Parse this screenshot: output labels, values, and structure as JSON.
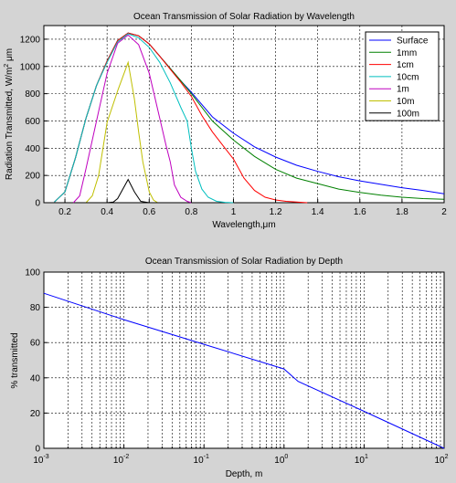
{
  "chart_data": [
    {
      "type": "line",
      "title": "Ocean Transmission of Solar Radiation by Wavelength",
      "xlabel": "Wavelength,μm",
      "ylabel": "Radiation Transmitted, W/m² μm",
      "ylabel_parts": {
        "pre": "Radiation Transmitted, W/m",
        "sup": "2",
        "post": " μm"
      },
      "xlim": [
        0.1,
        2.0
      ],
      "ylim": [
        0,
        1300
      ],
      "xticks": [
        0.2,
        0.4,
        0.6,
        0.8,
        1.0,
        1.2,
        1.4,
        1.6,
        1.8,
        2.0
      ],
      "xtick_labels": [
        "0.2",
        "0.4",
        "0.6",
        "0.8",
        "1",
        "1.2",
        "1.4",
        "1.6",
        "1.8",
        "2"
      ],
      "yticks": [
        0,
        200,
        400,
        600,
        800,
        1000,
        1200
      ],
      "ytick_labels": [
        "0",
        "200",
        "400",
        "600",
        "800",
        "1000",
        "1200"
      ],
      "grid": true,
      "legend_position": "top-right",
      "series": [
        {
          "name": "Surface",
          "color": "#0000ff",
          "x": [
            0.15,
            0.2,
            0.25,
            0.3,
            0.35,
            0.4,
            0.45,
            0.5,
            0.55,
            0.6,
            0.65,
            0.7,
            0.75,
            0.8,
            0.9,
            1.0,
            1.1,
            1.2,
            1.3,
            1.4,
            1.5,
            1.6,
            1.7,
            1.8,
            1.9,
            2.0
          ],
          "y": [
            5,
            80,
            330,
            620,
            860,
            1040,
            1190,
            1245,
            1225,
            1165,
            1075,
            985,
            895,
            810,
            630,
            510,
            410,
            335,
            275,
            230,
            190,
            160,
            135,
            110,
            90,
            65
          ]
        },
        {
          "name": "1mm",
          "color": "#008000",
          "x": [
            0.15,
            0.2,
            0.25,
            0.3,
            0.35,
            0.4,
            0.45,
            0.5,
            0.55,
            0.6,
            0.65,
            0.7,
            0.75,
            0.8,
            0.9,
            1.0,
            1.1,
            1.2,
            1.3,
            1.4,
            1.5,
            1.6,
            1.7,
            1.8,
            1.9,
            2.0
          ],
          "y": [
            5,
            80,
            330,
            620,
            860,
            1040,
            1190,
            1245,
            1225,
            1165,
            1075,
            985,
            895,
            800,
            600,
            460,
            340,
            245,
            180,
            140,
            100,
            75,
            55,
            40,
            30,
            25
          ]
        },
        {
          "name": "1cm",
          "color": "#ff0000",
          "x": [
            0.15,
            0.2,
            0.25,
            0.3,
            0.35,
            0.4,
            0.45,
            0.5,
            0.55,
            0.6,
            0.65,
            0.7,
            0.75,
            0.8,
            0.85,
            0.9,
            0.95,
            1.0,
            1.05,
            1.1,
            1.15,
            1.2,
            1.25,
            1.3,
            1.35
          ],
          "y": [
            5,
            80,
            330,
            620,
            860,
            1040,
            1190,
            1245,
            1225,
            1165,
            1075,
            980,
            885,
            780,
            640,
            520,
            420,
            320,
            180,
            90,
            40,
            20,
            10,
            5,
            0
          ]
        },
        {
          "name": "10cm",
          "color": "#00bfbf",
          "x": [
            0.15,
            0.2,
            0.25,
            0.3,
            0.35,
            0.4,
            0.45,
            0.5,
            0.55,
            0.6,
            0.65,
            0.7,
            0.75,
            0.78,
            0.8,
            0.82,
            0.85,
            0.88,
            0.92,
            0.96,
            1.0
          ],
          "y": [
            5,
            80,
            330,
            620,
            860,
            1030,
            1180,
            1240,
            1210,
            1140,
            1030,
            880,
            700,
            600,
            400,
            230,
            100,
            40,
            10,
            3,
            0
          ]
        },
        {
          "name": "1m",
          "color": "#bf00bf",
          "x": [
            0.24,
            0.27,
            0.3,
            0.35,
            0.4,
            0.45,
            0.5,
            0.55,
            0.6,
            0.65,
            0.68,
            0.7,
            0.72,
            0.75,
            0.78,
            0.8
          ],
          "y": [
            0,
            50,
            250,
            600,
            950,
            1170,
            1230,
            1160,
            950,
            620,
            420,
            300,
            130,
            40,
            10,
            0
          ]
        },
        {
          "name": "10m",
          "color": "#bfbf00",
          "x": [
            0.3,
            0.33,
            0.36,
            0.4,
            0.45,
            0.5,
            0.53,
            0.55,
            0.57,
            0.6,
            0.62,
            0.64
          ],
          "y": [
            0,
            50,
            200,
            590,
            820,
            1030,
            760,
            520,
            300,
            80,
            20,
            0
          ]
        },
        {
          "name": "100m",
          "color": "#000000",
          "x": [
            0.3,
            0.4,
            0.43,
            0.45,
            0.5,
            0.53,
            0.56,
            0.6,
            0.65
          ],
          "y": [
            0,
            0,
            5,
            30,
            170,
            80,
            10,
            0,
            0
          ]
        }
      ]
    },
    {
      "type": "line",
      "title": "Ocean Transmission of Solar Radiation by Depth",
      "xlabel": "Depth, m",
      "ylabel": "% transmitted",
      "xscale": "log",
      "xlim": [
        0.001,
        100
      ],
      "ylim": [
        0,
        100
      ],
      "xticks": [
        0.001,
        0.01,
        0.1,
        1,
        10,
        100
      ],
      "xtick_labels": [
        {
          "base": "10",
          "exp": "-3"
        },
        {
          "base": "10",
          "exp": "-2"
        },
        {
          "base": "10",
          "exp": "-1"
        },
        {
          "base": "10",
          "exp": "0"
        },
        {
          "base": "10",
          "exp": "1"
        },
        {
          "base": "10",
          "exp": "2"
        }
      ],
      "yticks": [
        0,
        20,
        40,
        60,
        80,
        100
      ],
      "ytick_labels": [
        "0",
        "20",
        "40",
        "60",
        "80",
        "100"
      ],
      "grid": true,
      "series": [
        {
          "color": "#0000ff",
          "x": [
            0.001,
            0.01,
            0.1,
            1,
            1.5,
            10,
            100
          ],
          "y": [
            88,
            73,
            59,
            45,
            38,
            21,
            0
          ]
        }
      ]
    }
  ]
}
